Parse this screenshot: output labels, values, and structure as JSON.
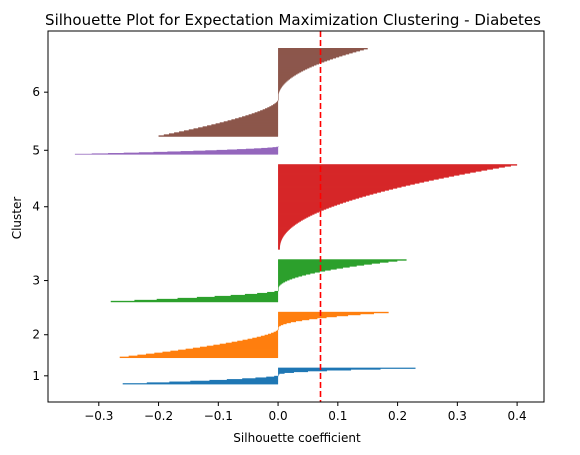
{
  "chart_data": {
    "type": "silhouette",
    "title": "Silhouette Plot for Expectation Maximization Clustering - Diabetes",
    "xlabel": "Silhouette coefficient",
    "ylabel": "Cluster",
    "xlim": [
      -0.385,
      0.445
    ],
    "xticks": [
      -0.3,
      -0.2,
      -0.1,
      0.0,
      0.1,
      0.2,
      0.3,
      0.4
    ],
    "xtick_labels": [
      "−0.3",
      "−0.2",
      "−0.1",
      "0.0",
      "0.1",
      "0.2",
      "0.3",
      "0.4"
    ],
    "average_silhouette": 0.071,
    "average_line_color": "#ff0000",
    "grid": false,
    "legend": "none",
    "clusters": [
      {
        "label": "1",
        "color": "#1f77b4",
        "count": 25,
        "min": -0.26,
        "max": 0.23,
        "neg_frac": 0.55
      },
      {
        "label": "2",
        "color": "#ff7f0e",
        "count": 70,
        "min": -0.265,
        "max": 0.185,
        "neg_frac": 0.63
      },
      {
        "label": "3",
        "color": "#2ca02c",
        "count": 65,
        "min": -0.28,
        "max": 0.215,
        "neg_frac": 0.27
      },
      {
        "label": "4",
        "color": "#d62728",
        "count": 130,
        "min": 0.003,
        "max": 0.4,
        "neg_frac": 0.0
      },
      {
        "label": "5",
        "color": "#9467bd",
        "count": 12,
        "min": -0.34,
        "max": -0.001,
        "neg_frac": 1.0
      },
      {
        "label": "6",
        "color": "#8c564b",
        "count": 135,
        "min": -0.2,
        "max": 0.15,
        "neg_frac": 0.42
      }
    ]
  }
}
